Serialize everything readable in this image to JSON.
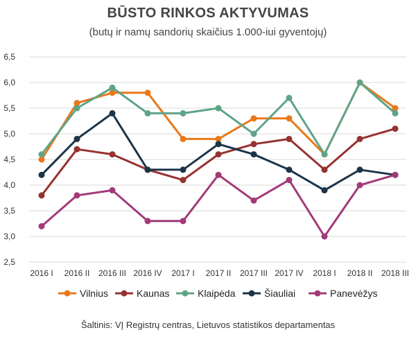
{
  "chart_data": {
    "type": "line",
    "title": "BŪSTO RINKOS AKTYVUMAS",
    "subtitle": "(butų ir namų sandorių skaičius 1.000-iui gyventojų)",
    "source": "Šaltinis: VĮ Registrų centras, Lietuvos statistikos departamentas",
    "categories": [
      "2016 I",
      "2016 II",
      "2016 III",
      "2016 IV",
      "2017 I",
      "2017 II",
      "2017 III",
      "2017 IV",
      "2018 I",
      "2018 II",
      "2018 III"
    ],
    "ylim": [
      2.5,
      6.5
    ],
    "yticks": [
      "2,5",
      "3,0",
      "3,5",
      "4,0",
      "4,5",
      "5,0",
      "5,5",
      "6,0",
      "6,5"
    ],
    "grid": true,
    "legend_position": "bottom",
    "series": [
      {
        "name": "Vilnius",
        "color": "#E8791B",
        "values": [
          4.5,
          5.6,
          5.8,
          5.8,
          4.9,
          4.9,
          5.3,
          5.3,
          4.6,
          6.0,
          5.5
        ]
      },
      {
        "name": "Kaunas",
        "color": "#963231",
        "values": [
          3.8,
          4.7,
          4.6,
          4.3,
          4.1,
          4.6,
          4.8,
          4.9,
          4.3,
          4.9,
          5.1
        ]
      },
      {
        "name": "Klaipėda",
        "color": "#5FA488",
        "values": [
          4.6,
          5.5,
          5.9,
          5.4,
          5.4,
          5.5,
          5.0,
          5.7,
          4.6,
          6.0,
          5.4
        ]
      },
      {
        "name": "Šiauliai",
        "color": "#1C3448",
        "values": [
          4.2,
          4.9,
          5.4,
          4.3,
          4.3,
          4.8,
          4.6,
          4.3,
          3.9,
          4.3,
          4.2
        ]
      },
      {
        "name": "Panevėžys",
        "color": "#A23A78",
        "values": [
          3.2,
          3.8,
          3.9,
          3.3,
          3.3,
          4.2,
          3.7,
          4.1,
          3.0,
          4.0,
          4.2
        ]
      }
    ]
  }
}
